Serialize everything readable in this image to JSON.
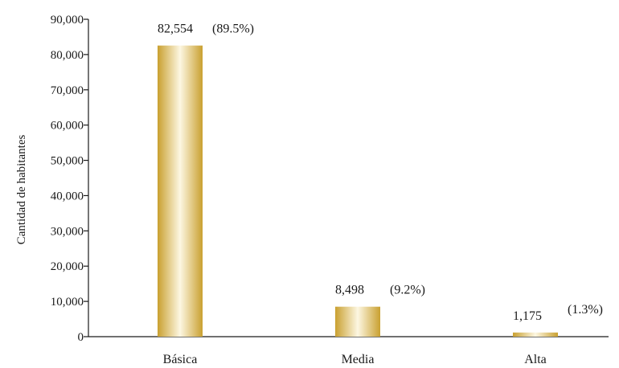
{
  "chart_data": {
    "type": "bar",
    "categories": [
      "Básica",
      "Media",
      "Alta"
    ],
    "values": [
      82554,
      8498,
      1175
    ],
    "value_labels": [
      "82,554",
      "8,498",
      "1,175"
    ],
    "percent_labels": [
      "(89.5%)",
      "(9.2%)",
      "(1.3%)"
    ],
    "title": "",
    "xlabel": "",
    "ylabel": "Cantidad de habitantes",
    "ylim": [
      0,
      90000
    ],
    "yticks": [
      0,
      10000,
      20000,
      30000,
      40000,
      50000,
      60000,
      70000,
      80000,
      90000
    ],
    "ytick_labels": [
      "0",
      "10,000",
      "20,000",
      "30,000",
      "40,000",
      "50,000",
      "60,000",
      "70,000",
      "80,000",
      "90,000"
    ],
    "grid": false,
    "legend": "none",
    "colors": {
      "bar_dark": "#c9a030",
      "bar_light": "#fdf7e2",
      "axis": "#1a1a1a"
    }
  }
}
